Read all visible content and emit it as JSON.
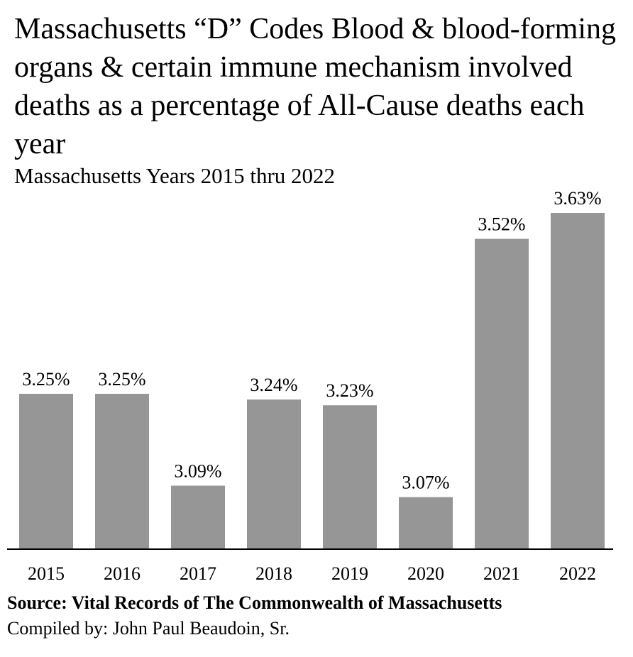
{
  "chart_data": {
    "type": "bar",
    "title": "Massachusetts “D” Codes Blood & blood-forming organs & certain immune mechanism involved deaths as a percentage of All-Cause deaths each year",
    "subtitle": "Massachusetts Years 2015 thru 2022",
    "categories": [
      "2015",
      "2016",
      "2017",
      "2018",
      "2019",
      "2020",
      "2021",
      "2022"
    ],
    "values": [
      3.25,
      3.25,
      3.09,
      3.24,
      3.23,
      3.07,
      3.52,
      3.63
    ],
    "value_labels": [
      "3.25%",
      "3.25%",
      "3.09%",
      "3.24%",
      "3.23%",
      "3.07%",
      "3.52%",
      "3.63%"
    ],
    "xlabel": "",
    "ylabel": "",
    "bar_color": "#969696",
    "grid": false,
    "legend": "none"
  },
  "footer": {
    "source": "Source:  Vital Records of The Commonwealth of Massachusetts",
    "compiled": "Compiled by:  John Paul Beaudoin, Sr."
  }
}
